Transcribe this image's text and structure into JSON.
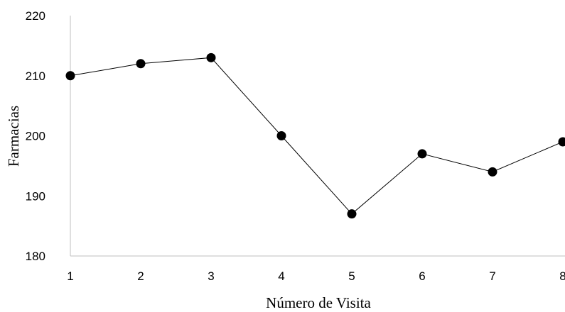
{
  "chart_data": {
    "type": "line",
    "title": "",
    "xlabel": "Número de Visita",
    "ylabel": "Farmacias",
    "x": [
      1,
      2,
      3,
      4,
      5,
      6,
      7,
      8
    ],
    "series": [
      {
        "values": [
          210,
          212,
          213,
          200,
          187,
          197,
          194,
          199
        ]
      }
    ],
    "ylim": [
      180,
      220
    ],
    "yticks": [
      180,
      190,
      200,
      210,
      220
    ],
    "xticks": [
      "1",
      "2",
      "3",
      "4",
      "5",
      "6",
      "7",
      "8"
    ],
    "grid": false,
    "line_color": "#000000",
    "marker_color": "#000000"
  }
}
